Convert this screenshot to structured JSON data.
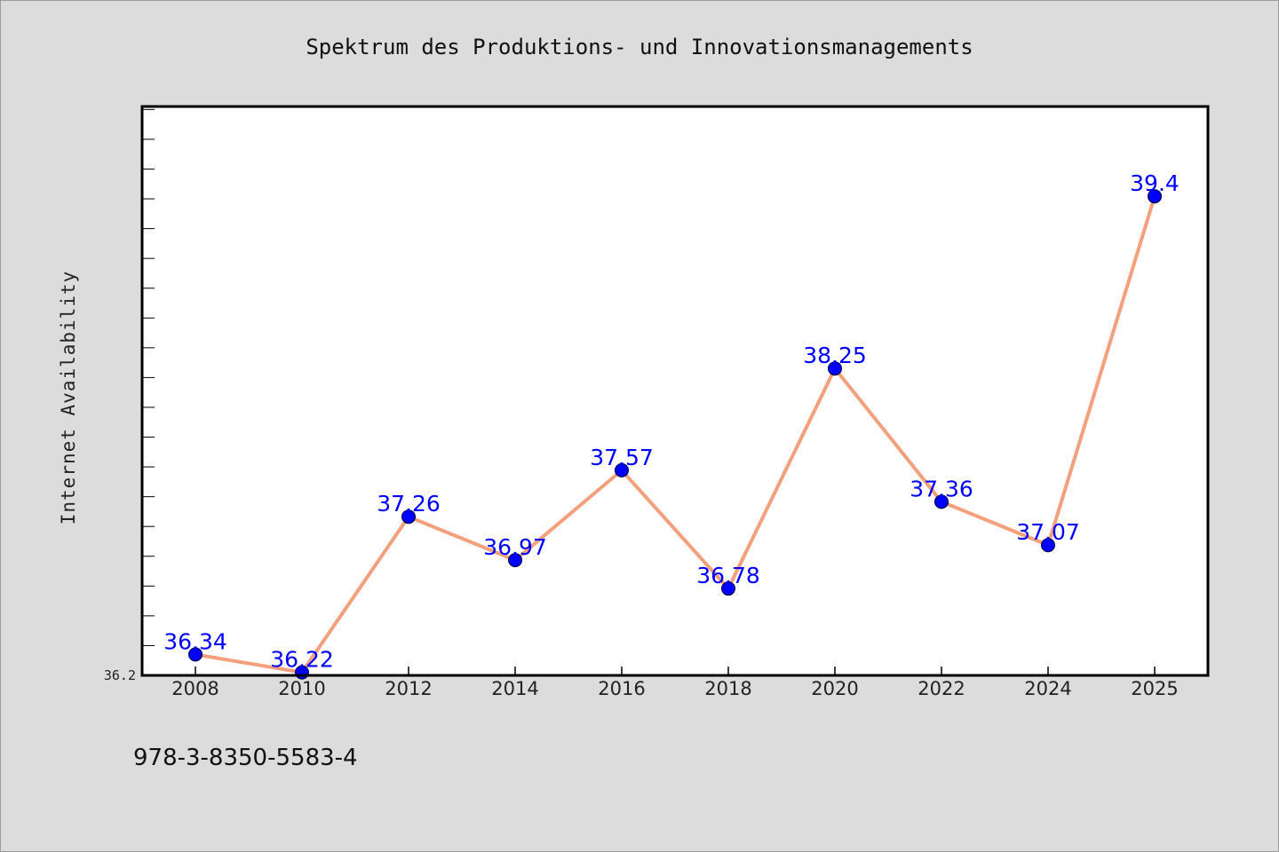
{
  "chart_data": {
    "type": "line",
    "title": "Spektrum des Produktions- und Innovationsmanagements",
    "xlabel": "",
    "ylabel": "Internet Availability",
    "categories": [
      "2008",
      "2010",
      "2012",
      "2014",
      "2016",
      "2018",
      "2020",
      "2022",
      "2024",
      "2025"
    ],
    "series": [
      {
        "values": [
          36.34,
          36.22,
          37.26,
          36.97,
          37.57,
          36.78,
          38.25,
          37.36,
          37.07,
          39.4
        ]
      }
    ],
    "data_labels": [
      "36.34",
      "36.22",
      "37.26",
      "36.97",
      "37.57",
      "36.78",
      "38.25",
      "37.36",
      "37.07",
      "39.4"
    ],
    "ylim": [
      36.2,
      40.0
    ],
    "y_tick_labels": [
      "36.2"
    ],
    "grid": false,
    "legend": "none",
    "colors": {
      "line": "#f4a07c",
      "marker": "#0000ff",
      "marker_edge": "#000033",
      "data_label": "#0000ff",
      "plot_background": "#ffffff",
      "page_background": "#dcdcdc",
      "axes": "#000000"
    }
  },
  "footer": {
    "isbn": "978-3-8350-5583-4"
  }
}
